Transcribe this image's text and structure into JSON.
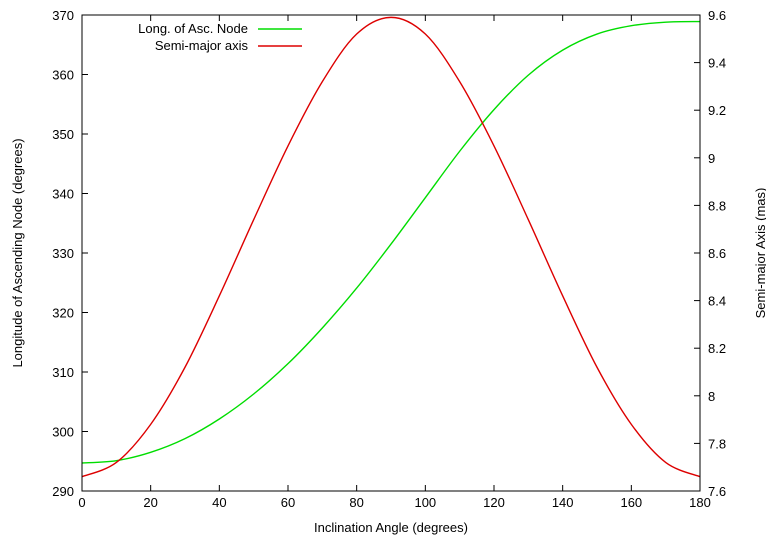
{
  "chart_data": {
    "type": "line",
    "title": "",
    "xlabel": "Inclination Angle (degrees)",
    "ylabel": "Longitude of Ascending Node (degrees)",
    "y2label": "Semi-major Axis (mas)",
    "xlim": [
      0,
      180
    ],
    "ylim": [
      290,
      370
    ],
    "y2lim": [
      7.6,
      9.6
    ],
    "xticks": [
      "0",
      "20",
      "40",
      "60",
      "80",
      "100",
      "120",
      "140",
      "160",
      "180"
    ],
    "yticks": [
      "290",
      "300",
      "310",
      "320",
      "330",
      "340",
      "350",
      "360",
      "370"
    ],
    "y2ticks": [
      "7.6",
      "7.8",
      "8",
      "8.2",
      "8.4",
      "8.6",
      "8.8",
      "9",
      "9.2",
      "9.4",
      "9.6"
    ],
    "grid": false,
    "legend_position": "top-left",
    "series": [
      {
        "name": "Long. of Asc. Node",
        "axis": "left",
        "color": "#00dd00",
        "x": [
          0,
          10,
          20,
          30,
          40,
          50,
          60,
          70,
          80,
          90,
          100,
          110,
          120,
          130,
          140,
          150,
          160,
          170,
          180
        ],
        "y": [
          294.7,
          295.1,
          296.5,
          298.8,
          302.1,
          306.3,
          311.4,
          317.4,
          324.1,
          331.5,
          339.3,
          347.1,
          354.1,
          359.9,
          364.1,
          366.8,
          368.2,
          368.8,
          368.9
        ]
      },
      {
        "name": "Semi-major axis",
        "axis": "right",
        "color": "#dd0000",
        "x": [
          0,
          10,
          20,
          30,
          40,
          50,
          60,
          70,
          80,
          90,
          100,
          110,
          120,
          130,
          140,
          150,
          160,
          170,
          180
        ],
        "y": [
          7.66,
          7.72,
          7.88,
          8.12,
          8.42,
          8.74,
          9.05,
          9.32,
          9.52,
          9.59,
          9.52,
          9.32,
          9.05,
          8.74,
          8.42,
          8.12,
          7.88,
          7.72,
          7.66
        ]
      }
    ]
  }
}
